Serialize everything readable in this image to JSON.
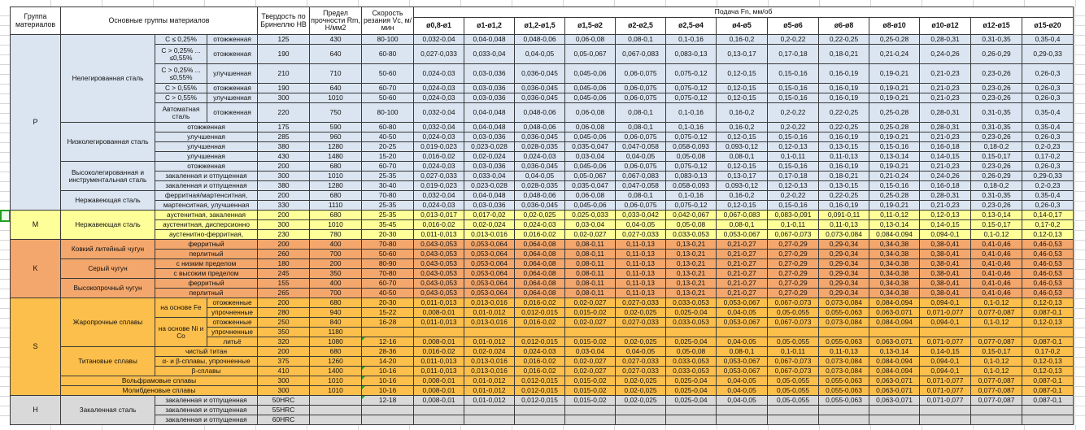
{
  "spreadsheet": {
    "header": {
      "group": "Группа материалов",
      "main_groups": "Основные группы материалов",
      "hardness": "Твердость по Бринеллю HB",
      "strength": "Предел прочности Rm, Н/мм2",
      "speed": "Скорость резания Vc, м/мин",
      "feed": "Подача Fn, мм/об",
      "diameters": [
        "ø0,8-ø1",
        "ø1-ø1,2",
        "ø1,2-ø1,5",
        "ø1,5-ø2",
        "ø2-ø2,5",
        "ø2,5-ø4",
        "ø4-ø5",
        "ø5-ø6",
        "ø6-ø8",
        "ø8-ø10",
        "ø10-ø12",
        "ø12-ø15",
        "ø15-ø20"
      ]
    },
    "colors": {
      "group_P": "#dbe5f1",
      "group_M": "#ffff99",
      "group_K": "#f4a76c",
      "group_S": "#fdbf4b",
      "group_H": "#d9d9d9",
      "marker_green": "#2e9e3a"
    },
    "feed_patterns": {
      "A": [
        "0,032-0,04",
        "0,04-0,048",
        "0,048-0,06",
        "0,06-0,08",
        "0,08-0,1",
        "0,1-0,16",
        "0,16-0,2",
        "0,2-0,22",
        "0,22-0,25",
        "0,25-0,28",
        "0,28-0,31",
        "0,31-0,35",
        "0,35-0,4"
      ],
      "B": [
        "0,027-0,033",
        "0,033-0,04",
        "0,04-0,05",
        "0,05-0,067",
        "0,067-0,083",
        "0,083-0,13",
        "0,13-0,17",
        "0,17-0,18",
        "0,18-0,21",
        "0,21-0,24",
        "0,24-0,26",
        "0,26-0,29",
        "0,29-0,33"
      ],
      "C": [
        "0,024-0,03",
        "0,03-0,036",
        "0,036-0,045",
        "0,045-0,06",
        "0,06-0,075",
        "0,075-0,12",
        "0,12-0,15",
        "0,15-0,16",
        "0,16-0,19",
        "0,19-0,21",
        "0,21-0,23",
        "0,23-0,26",
        "0,26-0,3"
      ],
      "D": [
        "0,019-0,023",
        "0,023-0,028",
        "0,028-0,035",
        "0,035-0,047",
        "0,047-0,058",
        "0,058-0,093",
        "0,093-0,12",
        "0,12-0,13",
        "0,13-0,15",
        "0,15-0,16",
        "0,16-0,18",
        "0,18-0,2",
        "0,2-0,23"
      ],
      "E": [
        "0,016-0,02",
        "0,02-0,024",
        "0,024-0,03",
        "0,03-0,04",
        "0,04-0,05",
        "0,05-0,08",
        "0,08-0,1",
        "0,1-0,11",
        "0,11-0,13",
        "0,13-0,14",
        "0,14-0,15",
        "0,15-0,17",
        "0,17-0,2"
      ],
      "F": [
        "0,013-0,017",
        "0,017-0,02",
        "0,02-0,025",
        "0,025-0,033",
        "0,033-0,042",
        "0,042-0,067",
        "0,067-0,083",
        "0,083-0,091",
        "0,091-0,11",
        "0,11-0,12",
        "0,12-0,13",
        "0,13-0,14",
        "0,14-0,17"
      ],
      "G": [
        "0,011-0,013",
        "0,013-0,016",
        "0,016-0,02",
        "0,02-0,027",
        "0,027-0,033",
        "0,033-0,053",
        "0,053-0,067",
        "0,067-0,073",
        "0,073-0,084",
        "0,084-0,094",
        "0,094-0,1",
        "0,1-0,12",
        "0,12-0,13"
      ],
      "H": [
        "0,043-0,053",
        "0,053-0,064",
        "0,064-0,08",
        "0,08-0,11",
        "0,11-0,13",
        "0,13-0,21",
        "0,21-0,27",
        "0,27-0,29",
        "0,29-0,34",
        "0,34-0,38",
        "0,38-0,41",
        "0,41-0,46",
        "0,46-0,53"
      ],
      "I": [
        "0,008-0,01",
        "0,01-0,012",
        "0,012-0,015",
        "0,015-0,02",
        "0,02-0,025",
        "0,025-0,04",
        "0,04-0,05",
        "0,05-0,055",
        "0,055-0,063",
        "0,063-0,071",
        "0,071-0,077",
        "0,077-0,087",
        "0,087-0,1"
      ]
    },
    "rows": [
      {
        "c": "P",
        "grp": [
          "P",
          15
        ],
        "name": [
          "Нелегированная сталь",
          6
        ],
        "attr": [
          "C ≤ 0,25%",
          1
        ],
        "state": [
          "отожженная"
        ],
        "hb": "125",
        "rm": "430",
        "vc": "80-100",
        "f": "A"
      },
      {
        "c": "P",
        "tall": 1,
        "attr": [
          "C > 0,25% ... ≤0,55%",
          1
        ],
        "state": [
          "отожженная"
        ],
        "hb": "190",
        "rm": "640",
        "vc": "60-80",
        "f": "B"
      },
      {
        "c": "P",
        "tall": 1,
        "attr": [
          "C > 0,25% ... ≤0,55%",
          1
        ],
        "state": [
          "улучшенная"
        ],
        "hb": "210",
        "rm": "710",
        "vc": "50-60",
        "f": "C"
      },
      {
        "c": "P",
        "attr": [
          "C > 0,55%",
          1
        ],
        "state": [
          "отожженная"
        ],
        "hb": "190",
        "rm": "640",
        "vc": "60-70",
        "f": "C"
      },
      {
        "c": "P",
        "attr": [
          "C > 0,55%",
          1
        ],
        "state": [
          "улучшенная"
        ],
        "hb": "300",
        "rm": "1010",
        "vc": "50-60",
        "f": "C"
      },
      {
        "c": "P",
        "tall": 1,
        "attr": [
          "Автоматная сталь",
          1
        ],
        "state": [
          "отожженная"
        ],
        "hb": "220",
        "rm": "750",
        "vc": "80-100",
        "f": "A"
      },
      {
        "c": "P",
        "name": [
          "Низколегированная сталь",
          4
        ],
        "state2": [
          "отожженная"
        ],
        "hb": "175",
        "rm": "590",
        "vc": "60-80",
        "f": "A"
      },
      {
        "c": "P",
        "state2": [
          "улучшенная"
        ],
        "hb": "285",
        "rm": "960",
        "vc": "40-50",
        "f": "C"
      },
      {
        "c": "P",
        "state2": [
          "улучшенная"
        ],
        "hb": "380",
        "rm": "1280",
        "vc": "20-25",
        "f": "D"
      },
      {
        "c": "P",
        "state2": [
          "улучшенная"
        ],
        "hb": "430",
        "rm": "1480",
        "vc": "15-20",
        "f": "E"
      },
      {
        "c": "P",
        "name": [
          "Высоколегированная и инструментальная сталь",
          3
        ],
        "state2": [
          "отожженная"
        ],
        "hb": "200",
        "rm": "680",
        "vc": "60-70",
        "f": "C"
      },
      {
        "c": "P",
        "state2": [
          "закаленная и отпущенная"
        ],
        "hb": "300",
        "rm": "1010",
        "vc": "25-35",
        "f": "B"
      },
      {
        "c": "P",
        "state2": [
          "закаленная и отпущенная"
        ],
        "hb": "380",
        "rm": "1280",
        "vc": "30-40",
        "f": "D"
      },
      {
        "c": "P",
        "name": [
          "Нержавеющая сталь",
          2
        ],
        "state2": [
          "ферритная/мартенситная,"
        ],
        "hb": "200",
        "rm": "680",
        "vc": "70-80",
        "f": "A"
      },
      {
        "c": "P",
        "state2": [
          "мартенситная, улучшенная"
        ],
        "hb": "330",
        "rm": "1110",
        "vc": "25-35",
        "f": "C"
      },
      {
        "c": "M",
        "grp": [
          "M",
          3
        ],
        "name": [
          "Нержавеющая сталь",
          3
        ],
        "state2": [
          "аустенитная, закаленная"
        ],
        "hb": "200",
        "rm": "680",
        "vc": "25-35",
        "f": "F"
      },
      {
        "c": "M",
        "state2": [
          "аустенитная, дисперсионно"
        ],
        "hb": "300",
        "rm": "1010",
        "vc": "35-45",
        "f": "E"
      },
      {
        "c": "M",
        "state2": [
          "аустенитно-ферритная,"
        ],
        "hb": "230",
        "rm": "780",
        "vc": "20-30",
        "f": "G"
      },
      {
        "c": "K",
        "grp": [
          "K",
          6
        ],
        "name": [
          "Ковкий литейный чугун",
          2
        ],
        "state2": [
          "ферритный"
        ],
        "hb": "200",
        "rm": "400",
        "vc": "70-80",
        "f": "H"
      },
      {
        "c": "K",
        "state2": [
          "перлитный"
        ],
        "hb": "260",
        "rm": "700",
        "vc": "50-60",
        "f": "H"
      },
      {
        "c": "K",
        "name": [
          "Серый чугун",
          2
        ],
        "state2": [
          "с низким пределом"
        ],
        "hb": "180",
        "rm": "200",
        "vc": "80-90",
        "f": "H"
      },
      {
        "c": "K",
        "state2": [
          "с высоким пределом"
        ],
        "hb": "245",
        "rm": "350",
        "vc": "70-80",
        "f": "H"
      },
      {
        "c": "K",
        "name": [
          "Высокопрочный чугун",
          2
        ],
        "state2": [
          "ферритный"
        ],
        "hb": "155",
        "rm": "400",
        "vc": "60-70",
        "f": "H"
      },
      {
        "c": "K",
        "state2": [
          "перлитный"
        ],
        "hb": "265",
        "rm": "700",
        "vc": "40-50",
        "f": "H"
      },
      {
        "c": "S",
        "grp": [
          "S",
          10
        ],
        "name": [
          "Жаропрочные сплавы",
          5
        ],
        "attr": [
          "на основе Fe",
          2
        ],
        "state": [
          "отожженные"
        ],
        "hb": "200",
        "rm": "680",
        "vc": "20-30",
        "f": "G"
      },
      {
        "c": "S",
        "state": [
          "упрочненные"
        ],
        "hb": "280",
        "rm": "940",
        "vc": "15-22",
        "f": "I"
      },
      {
        "c": "S",
        "attr": [
          "на основе Ni и Co",
          3
        ],
        "state": [
          "отожженные"
        ],
        "hb": "250",
        "rm": "840",
        "vc": "16-28",
        "f": "G"
      },
      {
        "c": "S",
        "state": [
          "упрочненные"
        ],
        "hb": "350",
        "rm": "1180",
        "vc": "",
        "f": ""
      },
      {
        "c": "S",
        "state": [
          "литьё"
        ],
        "hb": "320",
        "rm": "1080",
        "vc": "12-16",
        "mark": 1,
        "f": "I"
      },
      {
        "c": "S",
        "name": [
          "Титановые сплавы",
          3
        ],
        "state2": [
          "чистый титан"
        ],
        "hb": "200",
        "rm": "680",
        "vc": "28-36",
        "f": "E"
      },
      {
        "c": "S",
        "state2": [
          "α- и β-сплавы, упрочненные"
        ],
        "hb": "375",
        "rm": "1260",
        "vc": "14-20",
        "f": "G"
      },
      {
        "c": "S",
        "state2": [
          "β-сплавы"
        ],
        "hb": "410",
        "rm": "1400",
        "vc": "10-16",
        "mark": 1,
        "f": "G"
      },
      {
        "c": "S",
        "name3": [
          "Вольфрамовые сплавы"
        ],
        "hb": "300",
        "rm": "1010",
        "vc": "10-16",
        "mark": 1,
        "f": "I"
      },
      {
        "c": "S",
        "name3": [
          "Молибденовые сплавы"
        ],
        "hb": "300",
        "rm": "1010",
        "vc": "10-16",
        "mark": 1,
        "f": "I"
      },
      {
        "c": "H",
        "grp": [
          "H",
          3
        ],
        "name": [
          "Закаленная сталь",
          3
        ],
        "state2": [
          "закаленная и отпущенная"
        ],
        "hb": "50HRC",
        "rm": "",
        "vc": "12-18",
        "mark": 1,
        "f": "I"
      },
      {
        "c": "H",
        "state2": [
          "закаленная и отпущенная"
        ],
        "hb": "55HRC",
        "rm": "",
        "vc": "",
        "f": ""
      },
      {
        "c": "H",
        "state2": [
          "закаленная и отпущенная"
        ],
        "hb": "60HRC",
        "rm": "",
        "vc": "",
        "f": ""
      }
    ]
  }
}
